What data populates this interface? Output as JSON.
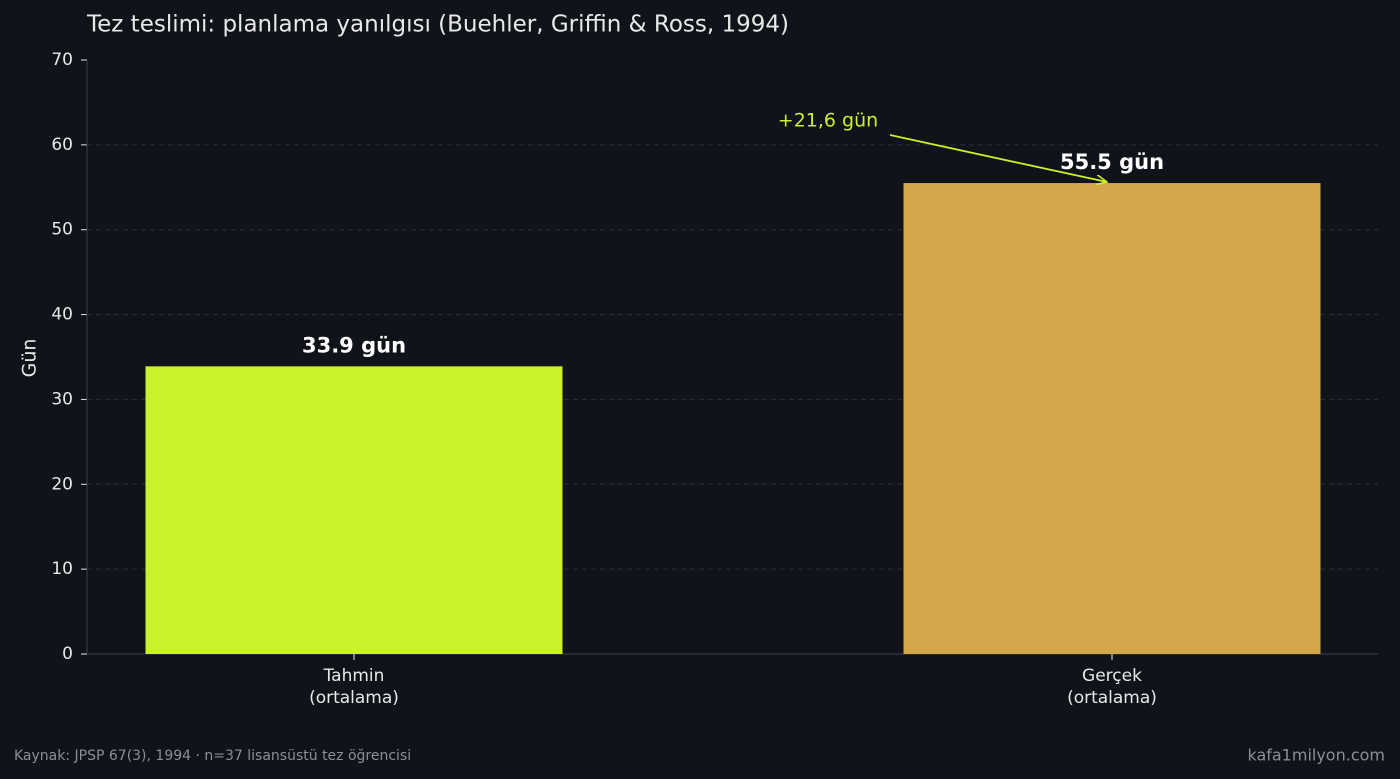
{
  "chart_data": {
    "type": "bar",
    "title": "Tez teslimi: planlama yanılgısı (Buehler, Griffin & Ross, 1994)",
    "y_label": "Gün",
    "categories": [
      "Tahmin\n(ortalama)",
      "Gerçek\n(ortalama)"
    ],
    "values": [
      33.9,
      55.5
    ],
    "value_labels": [
      "33.9 gün",
      "55.5 gün"
    ],
    "colors": [
      "#c9f22a",
      "#d4a64a"
    ],
    "ylim": [
      0,
      70
    ],
    "yticks": [
      0,
      10,
      20,
      30,
      40,
      50,
      60,
      70
    ],
    "grid": true,
    "annotation": "+21,6 gün",
    "source": "Kaynak: JPSP 67(3), 1994 · n=37 lisansüstü tez öğrencisi",
    "site": "kafa1milyon.com"
  }
}
